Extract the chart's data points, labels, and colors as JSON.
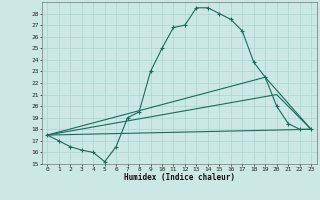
{
  "title": "",
  "xlabel": "Humidex (Indice chaleur)",
  "ylabel": "",
  "background_color": "#cce8e4",
  "grid_color": "#aad4cf",
  "line_color": "#1a6b5a",
  "xlim": [
    -0.5,
    23.5
  ],
  "ylim": [
    15,
    29
  ],
  "xticks": [
    0,
    1,
    2,
    3,
    4,
    5,
    6,
    7,
    8,
    9,
    10,
    11,
    12,
    13,
    14,
    15,
    16,
    17,
    18,
    19,
    20,
    21,
    22,
    23
  ],
  "yticks": [
    15,
    16,
    17,
    18,
    19,
    20,
    21,
    22,
    23,
    24,
    25,
    26,
    27,
    28
  ],
  "line1_x": [
    0,
    1,
    2,
    3,
    4,
    5,
    6,
    7,
    8,
    9,
    10,
    11,
    12,
    13,
    14,
    15,
    16,
    17,
    18,
    19,
    20,
    21,
    22,
    23
  ],
  "line1_y": [
    17.5,
    17.0,
    16.5,
    16.2,
    16.0,
    15.2,
    16.5,
    19.0,
    19.5,
    23.0,
    25.0,
    26.8,
    27.0,
    28.5,
    28.5,
    28.0,
    27.5,
    26.5,
    23.8,
    22.5,
    20.0,
    18.5,
    18.0,
    18.0
  ],
  "line2_x": [
    0,
    23
  ],
  "line2_y": [
    17.5,
    18.0
  ],
  "line3_x": [
    0,
    20,
    23
  ],
  "line3_y": [
    17.5,
    21.0,
    18.0
  ],
  "line4_x": [
    0,
    19,
    23
  ],
  "line4_y": [
    17.5,
    22.5,
    18.0
  ]
}
